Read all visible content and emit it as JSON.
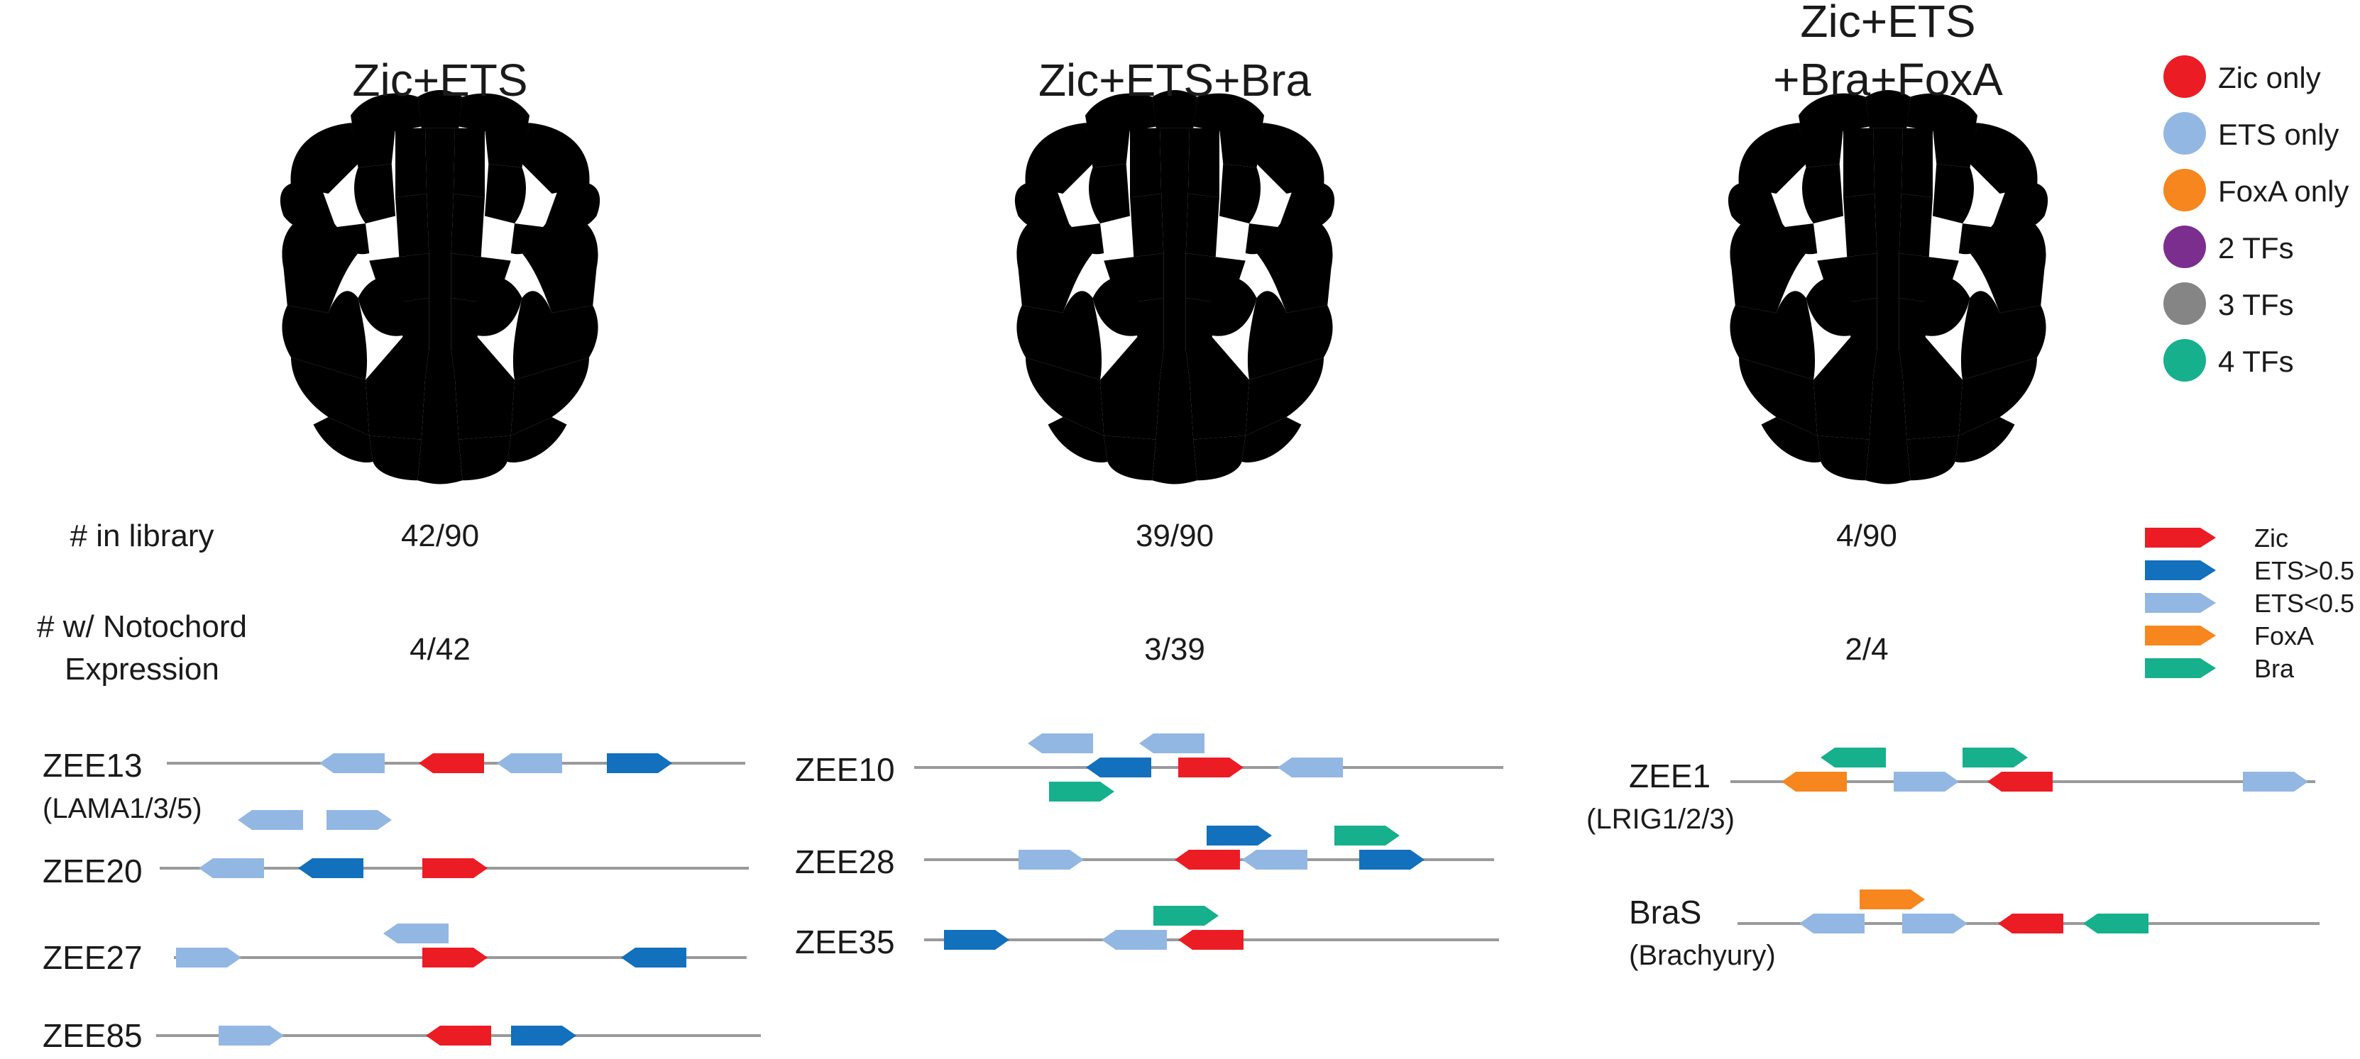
{
  "colors": {
    "zic": "#ec1c24",
    "ets_light": "#93b7e3",
    "ets_dark": "#1270bc",
    "foxa": "#f7861e",
    "two_tf": "#7b2e8e",
    "three_tf": "#858585",
    "four_tf": "#16b08c",
    "none": "#ffffff",
    "line": "#9a9a9a"
  },
  "panels": [
    {
      "title_lines": [
        "Zic+ETS"
      ],
      "count_library": "42/90",
      "count_notochord": "4/42",
      "cells": {
        "ring": "zic",
        "inner": "two_tf",
        "center": "ets_light",
        "lateral": "two_tf",
        "flank": "none"
      }
    },
    {
      "title_lines": [
        "Zic+ETS+Bra"
      ],
      "count_library": "39/90",
      "count_notochord": "3/39",
      "cells": {
        "ring": "zic",
        "inner": "three_tf",
        "center": "ets_light",
        "lateral": "two_tf",
        "flank": "none"
      }
    },
    {
      "title_lines": [
        "Zic+ETS",
        "+Bra+FoxA"
      ],
      "count_library": "4/90",
      "count_notochord": "2/4",
      "cells": {
        "ring": "zic",
        "inner": "four_tf",
        "center": "two_tf",
        "lateral": "three_tf",
        "flank": "foxa"
      }
    }
  ],
  "row_labels": {
    "library": "# in library",
    "notochord": [
      "# w/ Notochord",
      "Expression"
    ]
  },
  "cell_legend": [
    {
      "label": "Zic only",
      "color": "zic"
    },
    {
      "label": "ETS only",
      "color": "ets_light"
    },
    {
      "label": "FoxA only",
      "color": "foxa"
    },
    {
      "label": "2 TFs",
      "color": "two_tf"
    },
    {
      "label": "3 TFs",
      "color": "three_tf"
    },
    {
      "label": "4 TFs",
      "color": "four_tf"
    }
  ],
  "site_legend": [
    {
      "label": "Zic",
      "color": "zic"
    },
    {
      "label": "ETS>0.5",
      "color": "ets_dark"
    },
    {
      "label": "ETS<0.5",
      "color": "ets_light"
    },
    {
      "label": "FoxA",
      "color": "foxa"
    },
    {
      "label": "Bra",
      "color": "four_tf"
    }
  ],
  "enhancers": [
    {
      "name": "ZEE13",
      "sub": "(LAMA1/3/5)",
      "sites": [
        {
          "tf": "ets_light",
          "dir": "left",
          "row": 0
        },
        {
          "tf": "zic",
          "dir": "left",
          "row": 0
        },
        {
          "tf": "ets_light",
          "dir": "left",
          "row": 0
        },
        {
          "tf": "ets_dark",
          "dir": "right",
          "row": 0
        }
      ]
    },
    {
      "name": "ZEE20",
      "sub": "",
      "sites": [
        {
          "tf": "ets_light",
          "dir": "left",
          "row": 2
        },
        {
          "tf": "ets_light",
          "dir": "right",
          "row": 2
        },
        {
          "tf": "ets_light",
          "dir": "left",
          "row": 0
        },
        {
          "tf": "ets_dark",
          "dir": "left",
          "row": 0
        },
        {
          "tf": "zic",
          "dir": "right",
          "row": 0
        }
      ]
    },
    {
      "name": "ZEE27",
      "sub": "",
      "sites": [
        {
          "tf": "ets_light",
          "dir": "right",
          "row": 0
        },
        {
          "tf": "ets_light",
          "dir": "left",
          "row": 1
        },
        {
          "tf": "zic",
          "dir": "right",
          "row": 0
        },
        {
          "tf": "ets_dark",
          "dir": "left",
          "row": 0
        }
      ]
    },
    {
      "name": "ZEE85",
      "sub": "",
      "sites": [
        {
          "tf": "ets_light",
          "dir": "right",
          "row": 0
        },
        {
          "tf": "zic",
          "dir": "left",
          "row": 0
        },
        {
          "tf": "ets_dark",
          "dir": "right",
          "row": 0
        }
      ]
    },
    {
      "name": "ZEE10",
      "sub": "",
      "sites": [
        {
          "tf": "ets_light",
          "dir": "left",
          "row": 1
        },
        {
          "tf": "ets_light",
          "dir": "left",
          "row": 1
        },
        {
          "tf": "ets_dark",
          "dir": "left",
          "row": 0
        },
        {
          "tf": "zic",
          "dir": "right",
          "row": 0
        },
        {
          "tf": "ets_light",
          "dir": "left",
          "row": 0
        },
        {
          "tf": "four_tf",
          "dir": "right",
          "row": -1
        }
      ]
    },
    {
      "name": "ZEE28",
      "sub": "",
      "sites": [
        {
          "tf": "ets_light",
          "dir": "right",
          "row": 0
        },
        {
          "tf": "ets_dark",
          "dir": "right",
          "row": 1
        },
        {
          "tf": "four_tf",
          "dir": "right",
          "row": 1
        },
        {
          "tf": "zic",
          "dir": "left",
          "row": 0
        },
        {
          "tf": "ets_light",
          "dir": "left",
          "row": 0
        },
        {
          "tf": "ets_dark",
          "dir": "right",
          "row": 0
        }
      ]
    },
    {
      "name": "ZEE35",
      "sub": "",
      "sites": [
        {
          "tf": "ets_dark",
          "dir": "right",
          "row": 0
        },
        {
          "tf": "four_tf",
          "dir": "right",
          "row": 1
        },
        {
          "tf": "ets_light",
          "dir": "left",
          "row": 0
        },
        {
          "tf": "zic",
          "dir": "left",
          "row": 0
        }
      ]
    },
    {
      "name": "ZEE1",
      "sub": "(LRIG1/2/3)",
      "sites": [
        {
          "tf": "four_tf",
          "dir": "left",
          "row": 1
        },
        {
          "tf": "four_tf",
          "dir": "right",
          "row": 1
        },
        {
          "tf": "foxa",
          "dir": "left",
          "row": 0
        },
        {
          "tf": "ets_light",
          "dir": "right",
          "row": 0
        },
        {
          "tf": "zic",
          "dir": "left",
          "row": 0
        },
        {
          "tf": "ets_light",
          "dir": "right",
          "row": 0
        }
      ]
    },
    {
      "name": "BraS",
      "sub": "(Brachyury)",
      "sites": [
        {
          "tf": "foxa",
          "dir": "right",
          "row": 1
        },
        {
          "tf": "ets_light",
          "dir": "left",
          "row": 0
        },
        {
          "tf": "ets_light",
          "dir": "right",
          "row": 0
        },
        {
          "tf": "zic",
          "dir": "left",
          "row": 0
        },
        {
          "tf": "four_tf",
          "dir": "left",
          "row": 0
        }
      ]
    }
  ]
}
